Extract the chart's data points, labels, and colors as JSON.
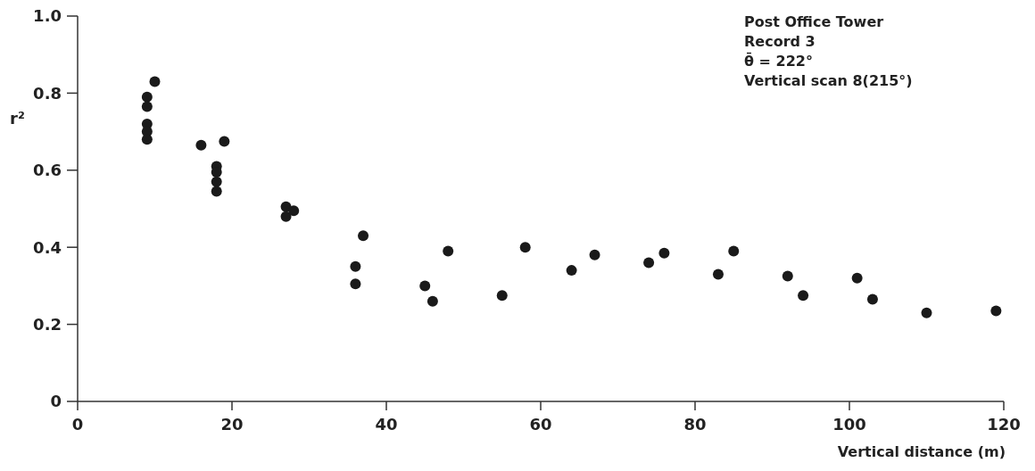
{
  "chart_data": {
    "type": "scatter",
    "xlabel": "Vertical distance (m)",
    "ylabel": "r²",
    "annotations": [
      "Post Office Tower",
      "Record 3",
      "θ̄ = 222°",
      "Vertical scan 8(215°)"
    ],
    "series": [
      {
        "color": "#1a1a1a",
        "x": [
          9,
          9,
          9,
          9,
          9,
          10,
          16,
          18,
          18,
          18,
          18,
          19,
          27,
          27,
          28,
          36,
          36,
          37,
          45,
          46,
          48,
          55,
          58,
          64,
          67,
          74,
          76,
          83,
          85,
          92,
          94,
          101,
          103,
          110,
          119
        ],
        "values": [
          0.79,
          0.765,
          0.72,
          0.7,
          0.68,
          0.83,
          0.665,
          0.61,
          0.595,
          0.57,
          0.545,
          0.675,
          0.505,
          0.48,
          0.495,
          0.35,
          0.305,
          0.43,
          0.3,
          0.26,
          0.39,
          0.275,
          0.4,
          0.34,
          0.38,
          0.36,
          0.385,
          0.33,
          0.39,
          0.325,
          0.275,
          0.32,
          0.265,
          0.23,
          0.235
        ]
      }
    ],
    "xlim": [
      0,
      120
    ],
    "xticks": [
      0,
      20,
      40,
      60,
      80,
      100,
      120
    ],
    "ylim": [
      0,
      1
    ],
    "yticks": [
      0,
      0.2,
      0.4,
      0.6,
      0.8,
      {
        "value": 1,
        "label": "1.0"
      }
    ],
    "grid": false,
    "marker": "circle"
  }
}
